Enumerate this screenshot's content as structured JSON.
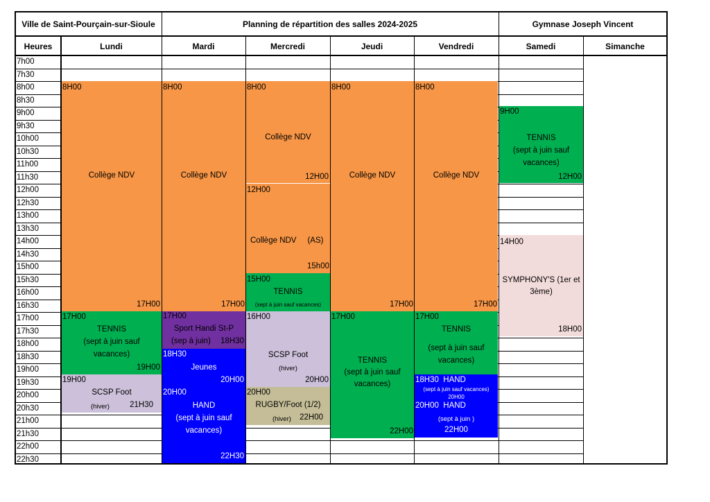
{
  "title": {
    "city": "Ville de Saint-Pourçain-sur-Sioule",
    "planning": "Planning de répartition des salles 2024-2025",
    "venue": "Gymnase Joseph Vincent"
  },
  "days": {
    "hours": "Heures",
    "mon": "Lundi",
    "tue": "Mardi",
    "wed": "Mercredi",
    "thu": "Jeudi",
    "fri": "Vendredi",
    "sat": "Samedi",
    "sun": "Simanche"
  },
  "hours": [
    "7h00",
    "7h30",
    "8h00",
    "8h30",
    "9h00",
    "9h30",
    "10h00",
    "10h30",
    "11h00",
    "11h30",
    "12h00",
    "12h30",
    "13h00",
    "13h30",
    "14h00",
    "14h30",
    "15h00",
    "15h30",
    "16h00",
    "16h30",
    "17h00",
    "17h30",
    "18h00",
    "18h30",
    "19h00",
    "19h30",
    "20h00",
    "20h30",
    "21h00",
    "21h30",
    "22h00",
    "22h30"
  ],
  "colors": {
    "orange": "#F79646",
    "green": "#00B050",
    "purple": "#7030A0",
    "lavender": "#CCC0DA",
    "blue": "#0000FF",
    "tan": "#C4BD97",
    "pink": "#F2DCDB"
  },
  "blocks": {
    "mon_ndv": {
      "start": "8H00",
      "label": "Collège NDV",
      "end": "17H00"
    },
    "tue_ndv": {
      "start": "8H00",
      "label": "Collège NDV",
      "end": "17H00"
    },
    "wed_ndv": {
      "start": "8H00",
      "label": "Collège NDV",
      "end": "12H00"
    },
    "wed_as": {
      "start": "12H00",
      "label": "Collège NDV     (AS)",
      "end": "15h00"
    },
    "wed_tennis": {
      "start": "15H00",
      "label": "TENNIS",
      "note": "(sept à juin sauf vacances)"
    },
    "thu_ndv": {
      "start": "8H00",
      "label": "Collège NDV",
      "end": "17H00"
    },
    "fri_ndv": {
      "start": "8H00",
      "label": "Collège NDV",
      "end": "17H00"
    },
    "sat_tennis": {
      "start": "9H00",
      "label1": "TENNIS",
      "label2": "(sept à juin sauf",
      "label3": "vacances)",
      "end": "12H00"
    },
    "sat_symphony": {
      "start": "14H00",
      "label1": "SYMPHONY'S (1er et",
      "label2": "3ème)",
      "end": "18H00"
    },
    "mon_tennis": {
      "start": "17H00",
      "label1": "TENNIS",
      "label2": "(sept à juin sauf",
      "label3": "vacances)",
      "end": "19H00"
    },
    "mon_foot": {
      "start": "19H00",
      "label": "SCSP Foot",
      "note": "(hiver)",
      "end": "21H30"
    },
    "tue_handi": {
      "start": "17H00",
      "label": "Sport Handi St-P",
      "note": "(sep à juin)",
      "end": "18H30"
    },
    "tue_jeunes": {
      "start": "18H30",
      "label": "Jeunes",
      "end": "20H00"
    },
    "tue_hand": {
      "start": "20H00",
      "label1": "HAND",
      "label2": "(sept à juin sauf",
      "label3": "vacances)",
      "end": "22H30"
    },
    "wed_foot": {
      "start": "16H00",
      "label": "SCSP Foot",
      "note": "(hiver)",
      "end": "20H00"
    },
    "wed_rugby": {
      "start": "20H00",
      "label": "RUGBY/Foot (1/2)",
      "note": "(hiver)",
      "end": "22H00"
    },
    "thu_tennis": {
      "start": "17H00",
      "label1": "TENNIS",
      "label2": "(sept à juin sauf",
      "label3": "vacances)",
      "end": "22H00"
    },
    "fri_tennis": {
      "start": "17H00",
      "label1": "TENNIS",
      "label2": "(sept à juin sauf",
      "label3": "vacances)"
    },
    "fri_hand1": {
      "start": "18H30  HAND",
      "note": "(sept à juin sauf vacances)",
      "end": "20H00"
    },
    "fri_hand2": {
      "start": "20H00  HAND",
      "note": "(sept à juin )",
      "end": "22H00"
    }
  }
}
